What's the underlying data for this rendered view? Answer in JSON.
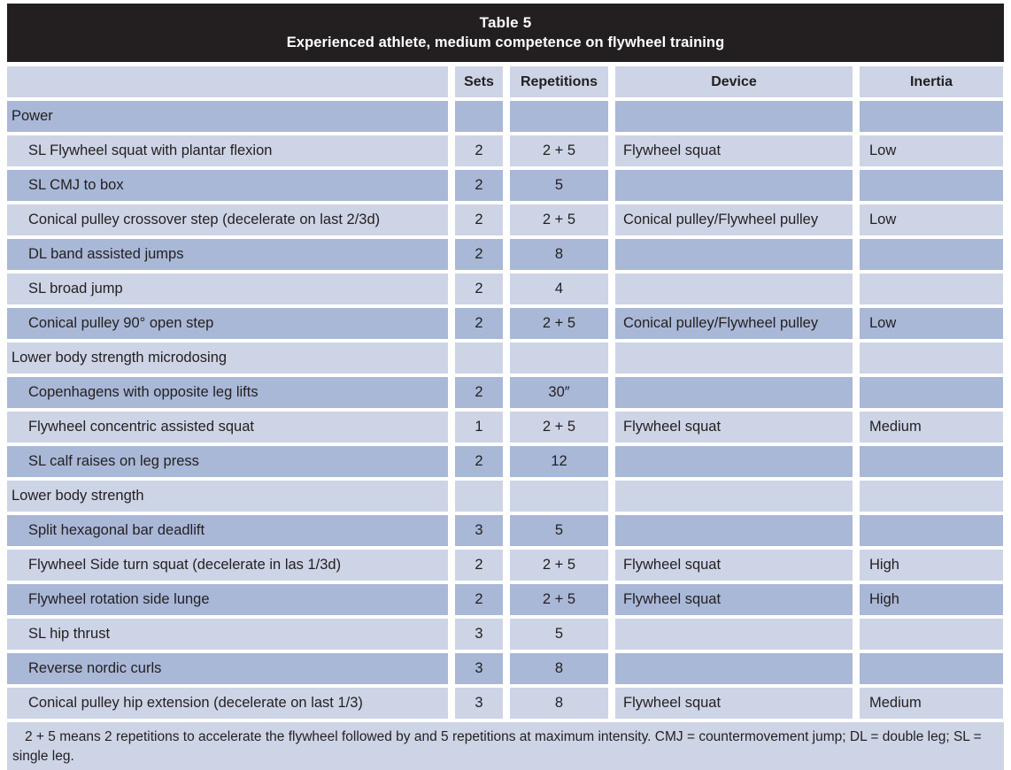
{
  "table": {
    "title": "Table 5",
    "subtitle": "Experienced athlete, medium competence on flywheel training",
    "columns": [
      "",
      "Sets",
      "Repetitions",
      "Device",
      "Inertia"
    ],
    "rows": [
      {
        "type": "section",
        "exercise": "Power",
        "sets": "",
        "reps": "",
        "device": "",
        "inertia": ""
      },
      {
        "type": "exercise",
        "exercise": "SL Flywheel squat with plantar flexion",
        "sets": "2",
        "reps": "2 + 5",
        "device": "Flywheel squat",
        "inertia": "Low"
      },
      {
        "type": "exercise",
        "exercise": "SL CMJ to box",
        "sets": "2",
        "reps": "5",
        "device": "",
        "inertia": ""
      },
      {
        "type": "exercise",
        "exercise": "Conical pulley crossover step (decelerate on last 2/3d)",
        "sets": "2",
        "reps": "2 + 5",
        "device": "Conical pulley/Flywheel pulley",
        "inertia": "Low"
      },
      {
        "type": "exercise",
        "exercise": "DL band assisted jumps",
        "sets": "2",
        "reps": "8",
        "device": "",
        "inertia": ""
      },
      {
        "type": "exercise",
        "exercise": "SL broad jump",
        "sets": "2",
        "reps": "4",
        "device": "",
        "inertia": ""
      },
      {
        "type": "exercise",
        "exercise": "Conical pulley 90° open step",
        "sets": "2",
        "reps": "2 + 5",
        "device": "Conical pulley/Flywheel pulley",
        "inertia": "Low"
      },
      {
        "type": "section",
        "exercise": "Lower body strength microdosing",
        "sets": "",
        "reps": "",
        "device": "",
        "inertia": ""
      },
      {
        "type": "exercise",
        "exercise": "Copenhagens with opposite leg lifts",
        "sets": "2",
        "reps": "30″",
        "device": "",
        "inertia": ""
      },
      {
        "type": "exercise",
        "exercise": "Flywheel concentric assisted squat",
        "sets": "1",
        "reps": "2 + 5",
        "device": "Flywheel squat",
        "inertia": "Medium"
      },
      {
        "type": "exercise",
        "exercise": "SL calf raises on leg press",
        "sets": "2",
        "reps": "12",
        "device": "",
        "inertia": ""
      },
      {
        "type": "section",
        "exercise": "Lower body strength",
        "sets": "",
        "reps": "",
        "device": "",
        "inertia": ""
      },
      {
        "type": "exercise",
        "exercise": "Split hexagonal bar deadlift",
        "sets": "3",
        "reps": "5",
        "device": "",
        "inertia": ""
      },
      {
        "type": "exercise",
        "exercise": "Flywheel Side turn squat (decelerate in las 1/3d)",
        "sets": "2",
        "reps": "2 + 5",
        "device": "Flywheel squat",
        "inertia": "High"
      },
      {
        "type": "exercise",
        "exercise": "Flywheel rotation side lunge",
        "sets": "2",
        "reps": "2 + 5",
        "device": "Flywheel squat",
        "inertia": "High"
      },
      {
        "type": "exercise",
        "exercise": "SL hip thrust",
        "sets": "3",
        "reps": "5",
        "device": "",
        "inertia": ""
      },
      {
        "type": "exercise",
        "exercise": "Reverse nordic curls",
        "sets": "3",
        "reps": "8",
        "device": "",
        "inertia": ""
      },
      {
        "type": "exercise",
        "exercise": "Conical pulley hip extension (decelerate on last 1/3)",
        "sets": "3",
        "reps": "8",
        "device": "Flywheel squat",
        "inertia": "Medium"
      }
    ],
    "footnote": "2 + 5 means 2 repetitions to accelerate the flywheel followed by and 5 repetitions at maximum intensity. CMJ = countermovement jump; DL = double leg; SL = single leg."
  },
  "colors": {
    "header_bg": "#231f20",
    "header_text": "#ffffff",
    "row_light": "#cdd4e6",
    "row_medium": "#a9b8d7",
    "text": "#231f20",
    "page_bg": "#ffffff"
  }
}
